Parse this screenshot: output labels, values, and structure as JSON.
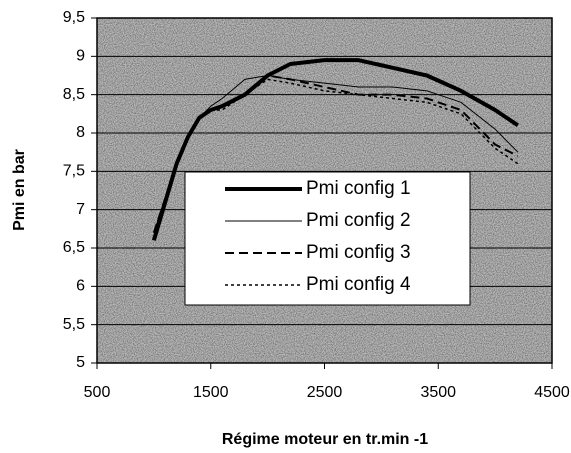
{
  "chart_data": {
    "type": "line",
    "xlabel": "Régime moteur en tr.min -1",
    "ylabel": "Pmi en bar",
    "x": [
      1000,
      1100,
      1200,
      1300,
      1400,
      1500,
      1600,
      1800,
      2000,
      2200,
      2500,
      2800,
      3100,
      3400,
      3700,
      4000,
      4200
    ],
    "series": [
      {
        "name": "Pmi config 1",
        "color": "#000000",
        "width": 4,
        "style": "solid",
        "values": [
          6.6,
          7.1,
          7.6,
          7.95,
          8.2,
          8.3,
          8.35,
          8.5,
          8.75,
          8.9,
          8.95,
          8.95,
          8.85,
          8.75,
          8.55,
          8.3,
          8.1
        ]
      },
      {
        "name": "Pmi config 2",
        "color": "#000000",
        "width": 1,
        "style": "solid",
        "values": [
          6.7,
          7.15,
          7.6,
          7.95,
          8.2,
          8.35,
          8.45,
          8.7,
          8.75,
          8.7,
          8.65,
          8.6,
          8.6,
          8.55,
          8.4,
          8.05,
          7.75
        ]
      },
      {
        "name": "Pmi config 3",
        "color": "#000000",
        "width": 2,
        "style": "dashed",
        "values": [
          6.7,
          7.15,
          7.6,
          7.95,
          8.2,
          8.3,
          8.35,
          8.5,
          8.75,
          8.7,
          8.6,
          8.5,
          8.5,
          8.45,
          8.3,
          7.85,
          7.7
        ]
      },
      {
        "name": "Pmi config 4",
        "color": "#000000",
        "width": 1.5,
        "style": "dotted",
        "values": [
          6.7,
          7.15,
          7.6,
          7.95,
          8.2,
          8.3,
          8.3,
          8.5,
          8.7,
          8.65,
          8.55,
          8.5,
          8.45,
          8.4,
          8.25,
          7.8,
          7.6
        ]
      }
    ],
    "xlim": [
      500,
      4500
    ],
    "xticks": [
      500,
      1500,
      2500,
      3500,
      4500
    ],
    "ylim": [
      5,
      9.5
    ],
    "yticks": [
      5,
      {
        "value": 5.5,
        "label": "5,5"
      },
      6,
      {
        "value": 6.5,
        "label": "6,5"
      },
      7,
      {
        "value": 7.5,
        "label": "7,5"
      },
      8,
      {
        "value": 8.5,
        "label": "8,5"
      },
      9,
      {
        "value": 9.5,
        "label": "9,5"
      }
    ],
    "grid": true
  }
}
